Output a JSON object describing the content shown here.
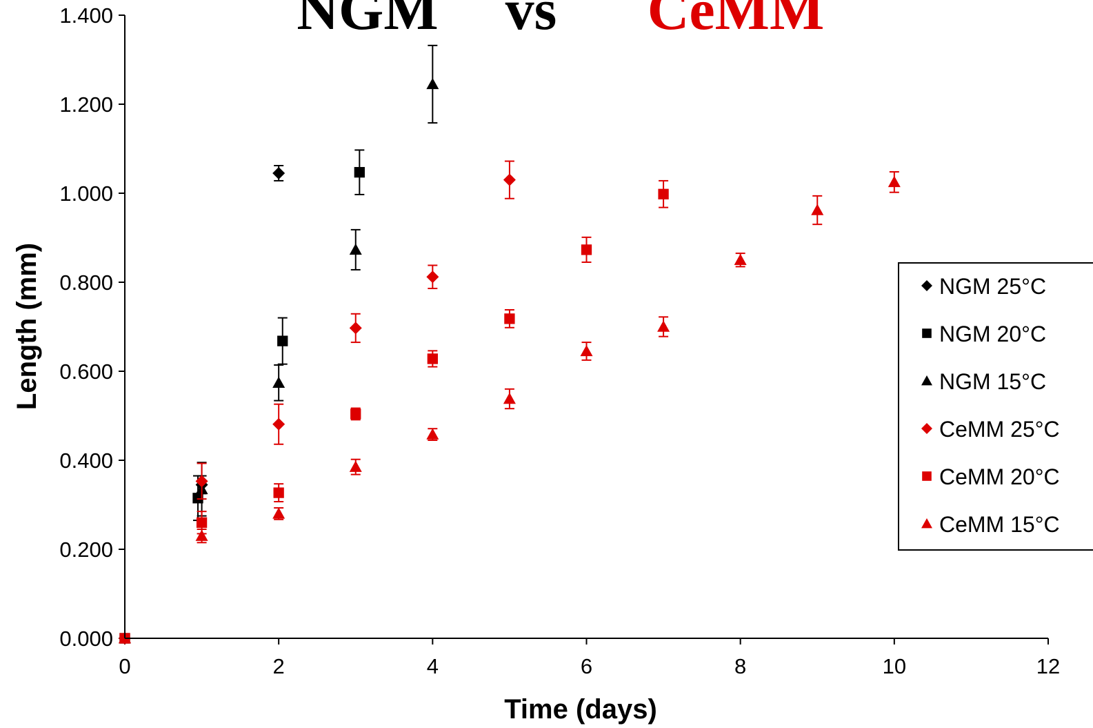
{
  "chart_data": {
    "type": "scatter",
    "title_parts": [
      {
        "text": "NGM",
        "color": "#000000"
      },
      {
        "text": "vs",
        "color": "#000000"
      },
      {
        "text": "CeMM",
        "color": "#dd0000"
      }
    ],
    "xlabel": "Time (days)",
    "ylabel": "Length (mm)",
    "xlim": [
      0,
      12
    ],
    "ylim": [
      0,
      1.4
    ],
    "xticks": [
      "0",
      "2",
      "4",
      "6",
      "8",
      "10",
      "12"
    ],
    "yticks": [
      "0.000",
      "0.200",
      "0.400",
      "0.600",
      "0.800",
      "1.000",
      "1.200",
      "1.400"
    ],
    "grid": false,
    "legend_position": "right",
    "series": [
      {
        "name": "NGM 25°C",
        "marker": "diamond",
        "color": "#000000",
        "points": [
          {
            "x": 0,
            "y": 0.0,
            "err": 0.0
          },
          {
            "x": 1,
            "y": 0.345,
            "err": 0.02
          },
          {
            "x": 2,
            "y": 1.045,
            "err": 0.017
          }
        ]
      },
      {
        "name": "NGM 20°C",
        "marker": "square",
        "color": "#000000",
        "points": [
          {
            "x": 0,
            "y": 0.0,
            "err": 0.0
          },
          {
            "x": 0.95,
            "y": 0.315,
            "err": 0.05
          },
          {
            "x": 2.05,
            "y": 0.668,
            "err": 0.052
          },
          {
            "x": 3.05,
            "y": 1.047,
            "err": 0.05
          }
        ]
      },
      {
        "name": "NGM 15°C",
        "marker": "triangle",
        "color": "#000000",
        "points": [
          {
            "x": 0,
            "y": 0.0,
            "err": 0.0
          },
          {
            "x": 1,
            "y": 0.335,
            "err": 0.06
          },
          {
            "x": 2,
            "y": 0.574,
            "err": 0.04
          },
          {
            "x": 3,
            "y": 0.873,
            "err": 0.045
          },
          {
            "x": 4,
            "y": 1.245,
            "err": 0.087
          }
        ]
      },
      {
        "name": "CeMM 25°C",
        "marker": "diamond",
        "color": "#dd0000",
        "points": [
          {
            "x": 0,
            "y": 0.0,
            "err": 0.0
          },
          {
            "x": 1,
            "y": 0.353,
            "err": 0.04
          },
          {
            "x": 2,
            "y": 0.481,
            "err": 0.045
          },
          {
            "x": 3,
            "y": 0.697,
            "err": 0.032
          },
          {
            "x": 4,
            "y": 0.812,
            "err": 0.026
          },
          {
            "x": 5,
            "y": 1.03,
            "err": 0.042
          }
        ]
      },
      {
        "name": "CeMM 20°C",
        "marker": "square",
        "color": "#dd0000",
        "points": [
          {
            "x": 0,
            "y": 0.0,
            "err": 0.0
          },
          {
            "x": 1,
            "y": 0.26,
            "err": 0.025
          },
          {
            "x": 2,
            "y": 0.327,
            "err": 0.02
          },
          {
            "x": 3,
            "y": 0.504,
            "err": 0.013
          },
          {
            "x": 4,
            "y": 0.628,
            "err": 0.018
          },
          {
            "x": 5,
            "y": 0.718,
            "err": 0.02
          },
          {
            "x": 6,
            "y": 0.873,
            "err": 0.028
          },
          {
            "x": 7,
            "y": 0.998,
            "err": 0.03
          }
        ]
      },
      {
        "name": "CeMM 15°C",
        "marker": "triangle",
        "color": "#dd0000",
        "points": [
          {
            "x": 0,
            "y": 0.0,
            "err": 0.0
          },
          {
            "x": 1,
            "y": 0.23,
            "err": 0.015
          },
          {
            "x": 2,
            "y": 0.28,
            "err": 0.013
          },
          {
            "x": 3,
            "y": 0.385,
            "err": 0.017
          },
          {
            "x": 4,
            "y": 0.458,
            "err": 0.013
          },
          {
            "x": 5,
            "y": 0.538,
            "err": 0.022
          },
          {
            "x": 6,
            "y": 0.645,
            "err": 0.02
          },
          {
            "x": 7,
            "y": 0.7,
            "err": 0.022
          },
          {
            "x": 8,
            "y": 0.85,
            "err": 0.015
          },
          {
            "x": 9,
            "y": 0.962,
            "err": 0.032
          },
          {
            "x": 10,
            "y": 1.025,
            "err": 0.023
          }
        ]
      }
    ]
  }
}
